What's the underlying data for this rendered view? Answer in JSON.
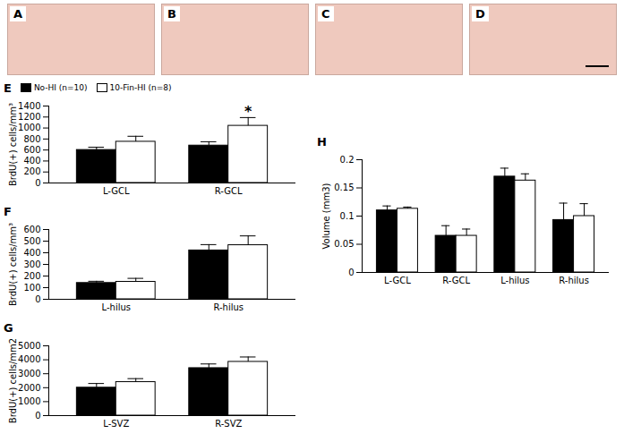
{
  "images": [
    {
      "label": "A"
    },
    {
      "label": "B"
    },
    {
      "label": "C"
    },
    {
      "label": "D"
    }
  ],
  "chart_data": [
    {
      "type": "bar",
      "title": "E",
      "ylabel": "BrdU(+) cells/mm³",
      "categories": [
        "L-GCL",
        "R-GCL"
      ],
      "series": [
        {
          "name": "No-HI (n=10)",
          "color": "#000000",
          "values": [
            600,
            680
          ],
          "errors": [
            50,
            70
          ]
        },
        {
          "name": "10-Fin-HI (n=8)",
          "color": "#ffffff",
          "values": [
            750,
            1040
          ],
          "errors": [
            100,
            150
          ]
        }
      ],
      "ylim": [
        0,
        1400
      ],
      "yticks": [
        0,
        200,
        400,
        600,
        800,
        1000,
        1200,
        1400
      ],
      "legend": "top",
      "annotations": [
        {
          "text": "*",
          "category": "R-GCL",
          "series": "10-Fin-HI (n=8)"
        }
      ]
    },
    {
      "type": "bar",
      "title": "F",
      "ylabel": "BrdU(+) cells/mm³",
      "categories": [
        "L-hilus",
        "R-hilus"
      ],
      "series": [
        {
          "color": "#000000",
          "values": [
            140,
            420
          ],
          "errors": [
            15,
            50
          ]
        },
        {
          "color": "#ffffff",
          "values": [
            150,
            465
          ],
          "errors": [
            30,
            80
          ]
        }
      ],
      "ylim": [
        0,
        600
      ],
      "yticks": [
        0,
        100,
        200,
        300,
        400,
        500,
        600
      ]
    },
    {
      "type": "bar",
      "title": "G",
      "ylabel": "BrdU(+) cells/mm2",
      "categories": [
        "L-SVZ",
        "R-SVZ"
      ],
      "series": [
        {
          "color": "#000000",
          "values": [
            2000,
            3400
          ],
          "errors": [
            300,
            300
          ]
        },
        {
          "color": "#ffffff",
          "values": [
            2400,
            3850
          ],
          "errors": [
            250,
            350
          ]
        }
      ],
      "ylim": [
        0,
        5000
      ],
      "yticks": [
        0,
        1000,
        2000,
        3000,
        4000,
        5000
      ]
    },
    {
      "type": "bar",
      "title": "H",
      "ylabel": "Volume (mm3)",
      "categories": [
        "L-GCL",
        "R-GCL",
        "L-hilus",
        "R-hilus"
      ],
      "series": [
        {
          "color": "#000000",
          "values": [
            0.11,
            0.065,
            0.17,
            0.093
          ],
          "errors": [
            0.008,
            0.018,
            0.015,
            0.03
          ]
        },
        {
          "color": "#ffffff",
          "values": [
            0.113,
            0.065,
            0.163,
            0.1
          ],
          "errors": [
            0.003,
            0.012,
            0.012,
            0.022
          ]
        }
      ],
      "ylim": [
        0,
        0.2
      ],
      "yticks": [
        0,
        0.05,
        0.1,
        0.15,
        0.2
      ]
    }
  ]
}
